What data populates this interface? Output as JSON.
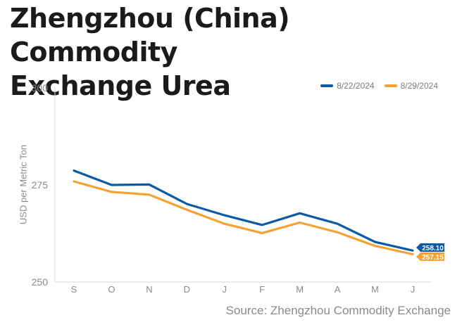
{
  "title_line1": "Zhengzhou (China) Commodity",
  "title_line2": "Exchange Urea",
  "source": "Source: Zhengzhou Commodity Exchange",
  "chart_data": {
    "type": "line",
    "title": "Zhengzhou (China) Commodity Exchange Urea",
    "ylabel": "USD per Metric Ton",
    "xlabel": "",
    "categories": [
      "S",
      "O",
      "N",
      "D",
      "J",
      "F",
      "M",
      "A",
      "M",
      "J"
    ],
    "ylim": [
      250,
      300
    ],
    "yticks": [
      250,
      275,
      300
    ],
    "grid": false,
    "legend_position": "top-right",
    "series": [
      {
        "name": "8/22/2024",
        "color": "#0b5aa6",
        "values": [
          278.7,
          275.0,
          275.1,
          270.1,
          267.2,
          264.7,
          267.7,
          265.0,
          260.3,
          258.1
        ],
        "end_label": "258.10"
      },
      {
        "name": "8/29/2024",
        "color": "#f5a233",
        "values": [
          275.9,
          273.2,
          272.5,
          268.6,
          265.0,
          262.6,
          265.3,
          262.8,
          259.3,
          257.15
        ],
        "end_label": "257.15"
      }
    ]
  }
}
